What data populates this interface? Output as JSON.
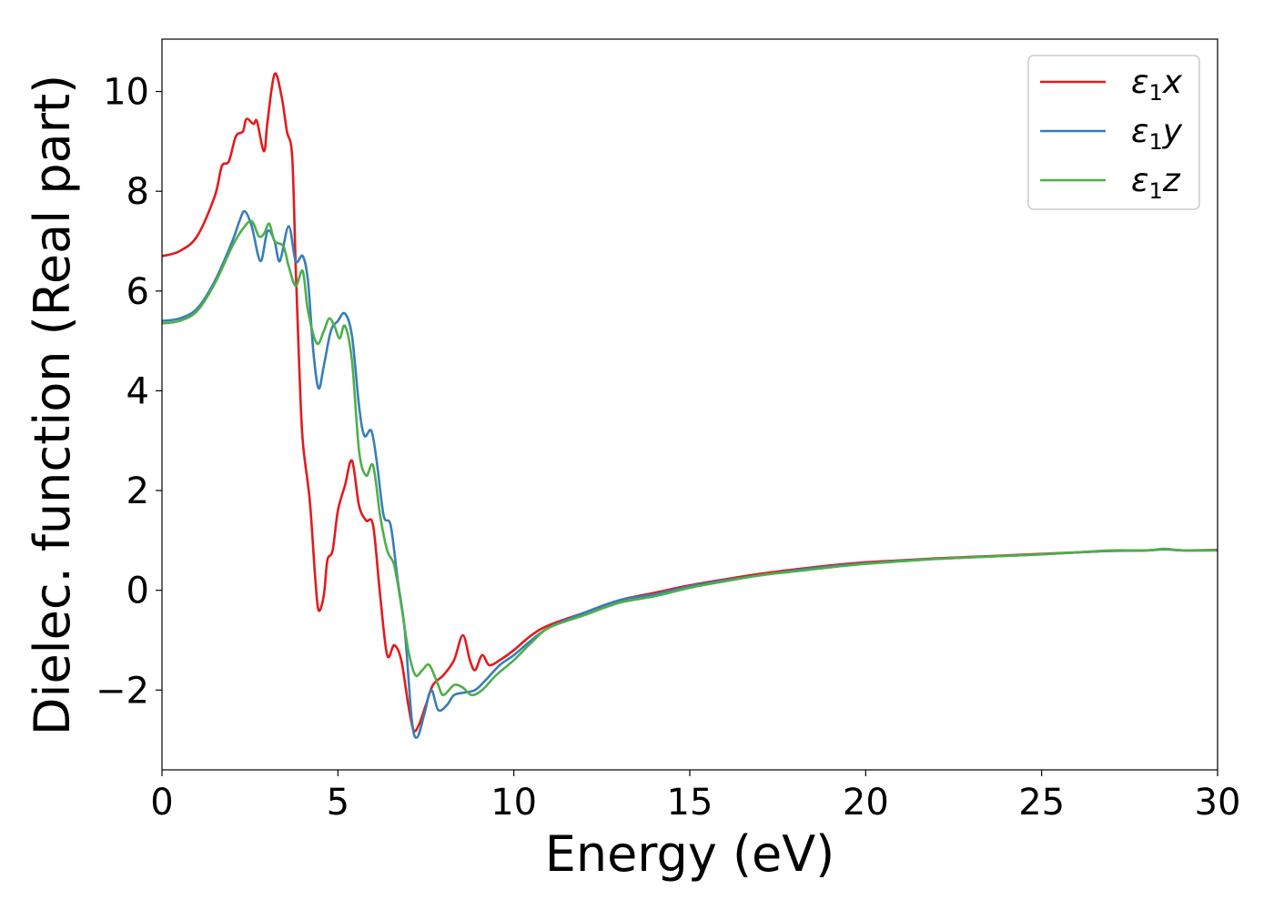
{
  "chart_data": {
    "type": "line",
    "xlabel": "Energy (eV)",
    "ylabel": "Dielec. function (Real part)",
    "xlim": [
      0,
      30
    ],
    "ylim": [
      -3.6,
      11.05
    ],
    "xticks": [
      0,
      5,
      10,
      15,
      20,
      25,
      30
    ],
    "yticks": [
      -2,
      0,
      2,
      4,
      6,
      8,
      10
    ],
    "ytick_labels": [
      "−2",
      "0",
      "2",
      "4",
      "6",
      "8",
      "10"
    ],
    "grid": false,
    "legend_position": "top-right",
    "series": [
      {
        "name": "ε1x",
        "legend_base": "ε",
        "legend_sub": "1",
        "legend_var": "x",
        "color": "#e41a1c",
        "points": [
          [
            0,
            6.7
          ],
          [
            0.5,
            6.8
          ],
          [
            1,
            7.1
          ],
          [
            1.5,
            7.9
          ],
          [
            1.7,
            8.5
          ],
          [
            1.9,
            8.6
          ],
          [
            2.1,
            9.1
          ],
          [
            2.3,
            9.2
          ],
          [
            2.4,
            9.45
          ],
          [
            2.6,
            9.35
          ],
          [
            2.7,
            9.4
          ],
          [
            2.9,
            8.8
          ],
          [
            3.0,
            9.4
          ],
          [
            3.2,
            10.35
          ],
          [
            3.4,
            9.9
          ],
          [
            3.55,
            9.2
          ],
          [
            3.7,
            8.7
          ],
          [
            3.8,
            6.5
          ],
          [
            3.9,
            4.5
          ],
          [
            4.0,
            3.0
          ],
          [
            4.2,
            1.8
          ],
          [
            4.35,
            0.3
          ],
          [
            4.45,
            -0.4
          ],
          [
            4.6,
            -0.1
          ],
          [
            4.7,
            0.6
          ],
          [
            4.85,
            0.8
          ],
          [
            5.0,
            1.6
          ],
          [
            5.2,
            2.1
          ],
          [
            5.4,
            2.6
          ],
          [
            5.6,
            1.7
          ],
          [
            5.8,
            1.4
          ],
          [
            6.0,
            1.3
          ],
          [
            6.2,
            -0.1
          ],
          [
            6.4,
            -1.3
          ],
          [
            6.6,
            -1.1
          ],
          [
            6.8,
            -1.4
          ],
          [
            7.0,
            -2.3
          ],
          [
            7.15,
            -2.8
          ],
          [
            7.3,
            -2.7
          ],
          [
            7.5,
            -2.3
          ],
          [
            7.7,
            -1.9
          ],
          [
            8.0,
            -1.7
          ],
          [
            8.3,
            -1.4
          ],
          [
            8.55,
            -0.9
          ],
          [
            8.75,
            -1.4
          ],
          [
            8.9,
            -1.6
          ],
          [
            9.1,
            -1.3
          ],
          [
            9.3,
            -1.5
          ],
          [
            9.6,
            -1.4
          ],
          [
            10.0,
            -1.2
          ],
          [
            10.5,
            -0.9
          ],
          [
            11,
            -0.7
          ],
          [
            12,
            -0.45
          ],
          [
            13,
            -0.2
          ],
          [
            14,
            -0.05
          ],
          [
            15,
            0.1
          ],
          [
            16,
            0.22
          ],
          [
            17,
            0.33
          ],
          [
            18,
            0.42
          ],
          [
            19,
            0.5
          ],
          [
            20,
            0.56
          ],
          [
            21,
            0.6
          ],
          [
            22,
            0.64
          ],
          [
            23,
            0.67
          ],
          [
            24,
            0.7
          ],
          [
            25,
            0.73
          ],
          [
            26,
            0.76
          ],
          [
            27,
            0.79
          ],
          [
            28,
            0.8
          ],
          [
            28.5,
            0.83
          ],
          [
            29,
            0.8
          ],
          [
            30,
            0.81
          ]
        ]
      },
      {
        "name": "ε1y",
        "legend_base": "ε",
        "legend_sub": "1",
        "legend_var": "y",
        "color": "#377eb8",
        "points": [
          [
            0,
            5.4
          ],
          [
            0.5,
            5.45
          ],
          [
            1,
            5.65
          ],
          [
            1.5,
            6.2
          ],
          [
            2.0,
            7.0
          ],
          [
            2.2,
            7.4
          ],
          [
            2.35,
            7.6
          ],
          [
            2.55,
            7.3
          ],
          [
            2.8,
            6.6
          ],
          [
            3.0,
            7.2
          ],
          [
            3.2,
            7.0
          ],
          [
            3.35,
            6.6
          ],
          [
            3.6,
            7.3
          ],
          [
            3.8,
            6.6
          ],
          [
            4.0,
            6.7
          ],
          [
            4.15,
            6.2
          ],
          [
            4.3,
            4.8
          ],
          [
            4.45,
            4.05
          ],
          [
            4.6,
            4.5
          ],
          [
            4.8,
            5.2
          ],
          [
            5.0,
            5.4
          ],
          [
            5.2,
            5.55
          ],
          [
            5.4,
            5.1
          ],
          [
            5.6,
            3.7
          ],
          [
            5.75,
            3.1
          ],
          [
            5.95,
            3.2
          ],
          [
            6.1,
            2.6
          ],
          [
            6.3,
            1.5
          ],
          [
            6.5,
            1.3
          ],
          [
            6.7,
            0.2
          ],
          [
            6.9,
            -0.8
          ],
          [
            7.1,
            -2.6
          ],
          [
            7.25,
            -2.95
          ],
          [
            7.45,
            -2.5
          ],
          [
            7.65,
            -2.0
          ],
          [
            7.85,
            -2.4
          ],
          [
            8.1,
            -2.3
          ],
          [
            8.3,
            -2.1
          ],
          [
            8.6,
            -2.05
          ],
          [
            8.9,
            -2.0
          ],
          [
            9.2,
            -1.8
          ],
          [
            9.6,
            -1.5
          ],
          [
            10.0,
            -1.3
          ],
          [
            10.5,
            -1.0
          ],
          [
            11,
            -0.75
          ],
          [
            12,
            -0.45
          ],
          [
            13,
            -0.2
          ],
          [
            14,
            -0.08
          ],
          [
            15,
            0.08
          ],
          [
            16,
            0.2
          ],
          [
            17,
            0.3
          ],
          [
            18,
            0.4
          ],
          [
            19,
            0.48
          ],
          [
            20,
            0.54
          ],
          [
            21,
            0.59
          ],
          [
            22,
            0.63
          ],
          [
            23,
            0.66
          ],
          [
            24,
            0.69
          ],
          [
            25,
            0.72
          ],
          [
            26,
            0.76
          ],
          [
            27,
            0.79
          ],
          [
            28,
            0.8
          ],
          [
            28.5,
            0.82
          ],
          [
            29,
            0.8
          ],
          [
            30,
            0.8
          ]
        ]
      },
      {
        "name": "ε1z",
        "legend_base": "ε",
        "legend_sub": "1",
        "legend_var": "z",
        "color": "#4daf4a",
        "points": [
          [
            0,
            5.35
          ],
          [
            0.5,
            5.4
          ],
          [
            1,
            5.6
          ],
          [
            1.5,
            6.15
          ],
          [
            2.0,
            6.9
          ],
          [
            2.3,
            7.25
          ],
          [
            2.55,
            7.4
          ],
          [
            2.75,
            7.1
          ],
          [
            2.9,
            7.15
          ],
          [
            3.05,
            7.35
          ],
          [
            3.2,
            7.0
          ],
          [
            3.45,
            6.9
          ],
          [
            3.6,
            6.5
          ],
          [
            3.8,
            6.1
          ],
          [
            4.0,
            6.4
          ],
          [
            4.15,
            5.6
          ],
          [
            4.4,
            4.95
          ],
          [
            4.6,
            5.2
          ],
          [
            4.75,
            5.45
          ],
          [
            4.9,
            5.3
          ],
          [
            5.05,
            5.05
          ],
          [
            5.2,
            5.3
          ],
          [
            5.4,
            4.6
          ],
          [
            5.6,
            2.8
          ],
          [
            5.8,
            2.3
          ],
          [
            6.0,
            2.5
          ],
          [
            6.2,
            1.5
          ],
          [
            6.4,
            0.8
          ],
          [
            6.6,
            0.5
          ],
          [
            6.8,
            -0.3
          ],
          [
            7.0,
            -1.2
          ],
          [
            7.2,
            -1.7
          ],
          [
            7.4,
            -1.6
          ],
          [
            7.6,
            -1.5
          ],
          [
            7.85,
            -1.9
          ],
          [
            8.0,
            -2.1
          ],
          [
            8.3,
            -1.9
          ],
          [
            8.55,
            -1.95
          ],
          [
            8.8,
            -2.1
          ],
          [
            9.1,
            -2.0
          ],
          [
            9.5,
            -1.7
          ],
          [
            10.0,
            -1.4
          ],
          [
            10.5,
            -1.05
          ],
          [
            11,
            -0.75
          ],
          [
            12,
            -0.5
          ],
          [
            13,
            -0.25
          ],
          [
            14,
            -0.12
          ],
          [
            15,
            0.05
          ],
          [
            16,
            0.18
          ],
          [
            17,
            0.3
          ],
          [
            18,
            0.38
          ],
          [
            19,
            0.46
          ],
          [
            20,
            0.53
          ],
          [
            21,
            0.58
          ],
          [
            22,
            0.63
          ],
          [
            23,
            0.66
          ],
          [
            24,
            0.69
          ],
          [
            25,
            0.72
          ],
          [
            26,
            0.76
          ],
          [
            27,
            0.8
          ],
          [
            28,
            0.8
          ],
          [
            28.5,
            0.83
          ],
          [
            29,
            0.8
          ],
          [
            30,
            0.8
          ]
        ]
      }
    ]
  }
}
